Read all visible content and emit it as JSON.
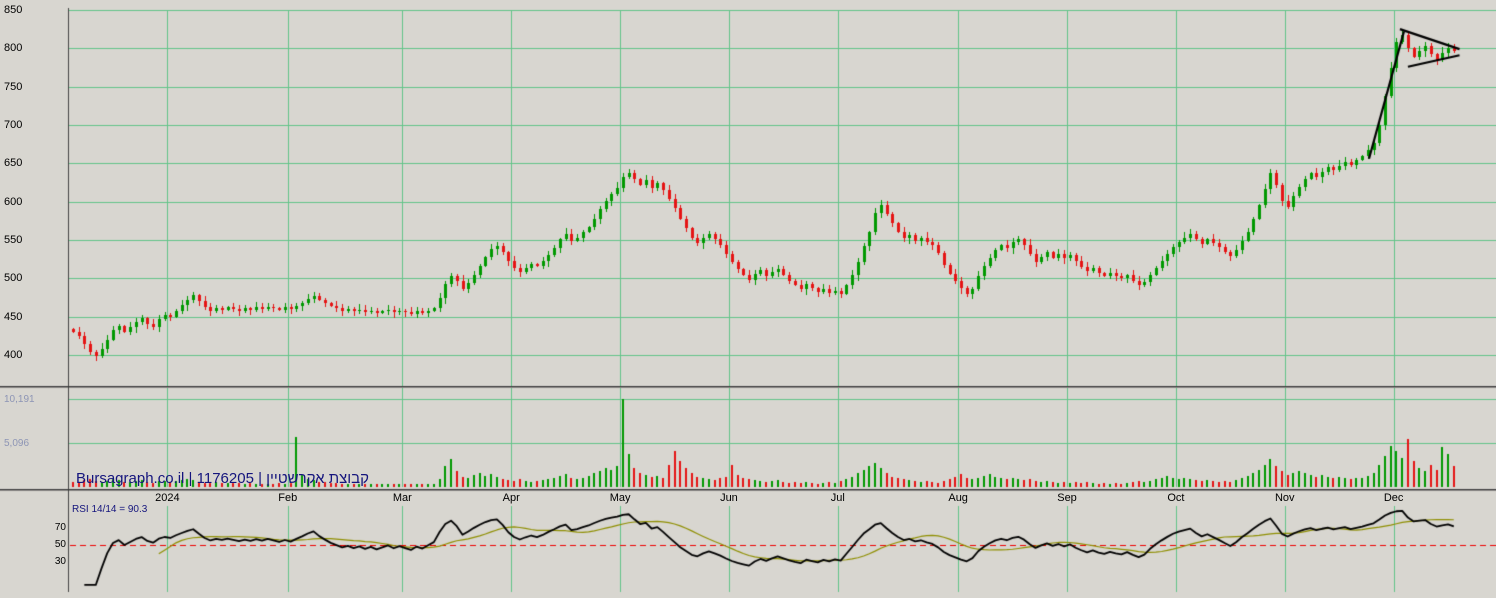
{
  "watermark": "Bursagraph.co.il | 1176205 | קבוצת אקרשטיין",
  "volume_axis_labels": [
    "10,191",
    "5,096"
  ],
  "rsi_panel": {
    "title": "RSI 14/14 = 90.3",
    "last_value": 90.3
  },
  "colors": {
    "background": "#d8d6d0",
    "grid": "#62c489",
    "up": "#009900",
    "down": "#e51414",
    "axis": "#444444",
    "separator": "#3c3c3c",
    "rsi_line": "#000000",
    "rsi_ma": "#8f8f00",
    "rsi_midline": "#ee0000",
    "annotation": "#000000",
    "watermark_text": "#15157d",
    "volume_label_text": "#8d95b5"
  },
  "chart_data": {
    "type": "candlestick",
    "title": "Daily candlestick chart with volume and RSI panels",
    "ylim": [
      400,
      850
    ],
    "y_gridlines": [
      850,
      800,
      750,
      700,
      650,
      600,
      550,
      500,
      450,
      400
    ],
    "x_ticks": [
      {
        "label": "2024",
        "index": 17
      },
      {
        "label": "Feb",
        "index": 38
      },
      {
        "label": "Mar",
        "index": 58
      },
      {
        "label": "Apr",
        "index": 77
      },
      {
        "label": "May",
        "index": 96
      },
      {
        "label": "Jun",
        "index": 115
      },
      {
        "label": "Jul",
        "index": 134
      },
      {
        "label": "Aug",
        "index": 155
      },
      {
        "label": "Sep",
        "index": 174
      },
      {
        "label": "Oct",
        "index": 193
      },
      {
        "label": "Nov",
        "index": 212
      },
      {
        "label": "Dec",
        "index": 231
      }
    ],
    "open_rule": "previous_close",
    "first_open": 434,
    "close": [
      430,
      425,
      415,
      404,
      399,
      408,
      420,
      433,
      438,
      430,
      436,
      443,
      448,
      440,
      436,
      447,
      452,
      450,
      458,
      465,
      472,
      478,
      470,
      462,
      457,
      461,
      459,
      462,
      460,
      458,
      461,
      459,
      462,
      460,
      463,
      461,
      459,
      462,
      460,
      464,
      468,
      473,
      477,
      472,
      468,
      464,
      461,
      458,
      460,
      457,
      459,
      456,
      458,
      455,
      457,
      459,
      456,
      458,
      456,
      454,
      457,
      455,
      458,
      461,
      474,
      492,
      503,
      497,
      486,
      494,
      505,
      516,
      528,
      538,
      542,
      534,
      522,
      513,
      508,
      514,
      519,
      516,
      522,
      531,
      540,
      551,
      558,
      549,
      553,
      560,
      567,
      578,
      590,
      601,
      610,
      618,
      632,
      638,
      630,
      622,
      628,
      618,
      624,
      615,
      604,
      592,
      578,
      566,
      552,
      546,
      553,
      558,
      551,
      543,
      532,
      521,
      512,
      505,
      498,
      506,
      511,
      503,
      508,
      512,
      505,
      497,
      491,
      486,
      492,
      487,
      482,
      486,
      481,
      484,
      480,
      491,
      504,
      521,
      542,
      560,
      585,
      596,
      584,
      572,
      561,
      552,
      556,
      549,
      553,
      547,
      543,
      533,
      518,
      506,
      497,
      487,
      479,
      486,
      503,
      516,
      527,
      537,
      543,
      539,
      547,
      551,
      544,
      532,
      521,
      528,
      534,
      527,
      532,
      526,
      531,
      522,
      515,
      509,
      513,
      507,
      503,
      507,
      503,
      500,
      504,
      497,
      491,
      495,
      505,
      514,
      523,
      532,
      541,
      548,
      553,
      558,
      551,
      545,
      551,
      546,
      541,
      535,
      529,
      537,
      549,
      561,
      577,
      596,
      617,
      638,
      622,
      601,
      593,
      607,
      619,
      630,
      637,
      632,
      639,
      645,
      641,
      647,
      652,
      648,
      654,
      660,
      668,
      676,
      700,
      738,
      775,
      808,
      818,
      800,
      789,
      796,
      803,
      792,
      785,
      794,
      801,
      796
    ],
    "volume": {
      "max_scale": 10191,
      "scale_gridlines": [
        10191,
        5096
      ],
      "values": [
        620,
        540,
        760,
        880,
        720,
        560,
        680,
        940,
        820,
        600,
        540,
        700,
        760,
        580,
        520,
        640,
        700,
        560,
        720,
        820,
        880,
        760,
        600,
        520,
        480,
        560,
        440,
        500,
        420,
        460,
        380,
        420,
        360,
        400,
        340,
        380,
        420,
        360,
        520,
        5800,
        1400,
        900,
        760,
        620,
        540,
        480,
        420,
        380,
        360,
        400,
        340,
        360,
        320,
        340,
        300,
        320,
        340,
        300,
        320,
        360,
        340,
        320,
        300,
        340,
        900,
        2400,
        3200,
        1800,
        1200,
        1000,
        1400,
        1600,
        1300,
        1500,
        1200,
        900,
        800,
        700,
        900,
        700,
        600,
        700,
        800,
        900,
        1100,
        1300,
        1500,
        1000,
        900,
        1100,
        1300,
        1600,
        1900,
        2200,
        2000,
        2400,
        10191,
        3800,
        2200,
        1600,
        1400,
        1200,
        1300,
        1100,
        2600,
        4200,
        3000,
        2200,
        1600,
        1200,
        1000,
        900,
        800,
        1000,
        1200,
        2600,
        1400,
        1100,
        900,
        800,
        700,
        600,
        700,
        800,
        600,
        500,
        600,
        500,
        600,
        500,
        400,
        500,
        600,
        500,
        700,
        900,
        1200,
        1600,
        2000,
        2400,
        2800,
        2200,
        1600,
        1200,
        1000,
        900,
        800,
        700,
        600,
        700,
        600,
        500,
        700,
        900,
        1200,
        1500,
        1100,
        900,
        1100,
        1300,
        1500,
        1200,
        1000,
        900,
        1100,
        900,
        800,
        900,
        700,
        600,
        700,
        600,
        500,
        600,
        500,
        600,
        500,
        600,
        500,
        400,
        500,
        400,
        500,
        400,
        500,
        600,
        700,
        600,
        700,
        900,
        1100,
        1300,
        1100,
        900,
        1000,
        900,
        800,
        700,
        800,
        700,
        600,
        700,
        600,
        800,
        1000,
        1300,
        1600,
        2000,
        2600,
        3200,
        2400,
        1800,
        1400,
        1600,
        1800,
        1600,
        1400,
        1200,
        1400,
        1200,
        1000,
        1200,
        1000,
        900,
        1000,
        1100,
        1300,
        1600,
        2600,
        3600,
        4800,
        4200,
        3400,
        5600,
        3000,
        2200,
        1800,
        2600,
        2000,
        4600,
        3800,
        2400
      ]
    },
    "rsi": {
      "period": 14,
      "smoothing_period": 14,
      "last_value": 90.3,
      "midline": 50,
      "scale_ticks": [
        70,
        50,
        30
      ],
      "range": [
        0,
        100
      ]
    },
    "annotations": {
      "trend_lines": [
        {
          "x1": 226.2,
          "p1": 656,
          "x2": 232.3,
          "p2": 822
        },
        {
          "x1": 231.6,
          "p1": 825,
          "x2": 242.0,
          "p2": 799
        },
        {
          "x1": 233.0,
          "p1": 776,
          "x2": 242.0,
          "p2": 791
        }
      ]
    }
  }
}
